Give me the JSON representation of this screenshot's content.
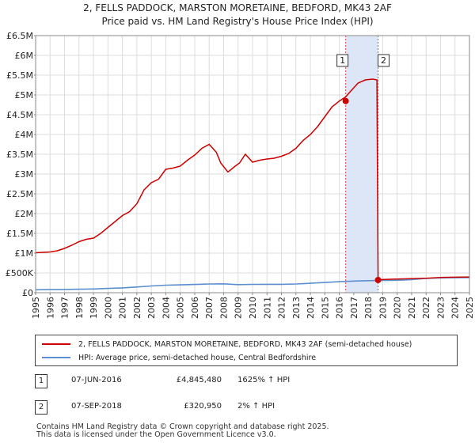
{
  "title_line1": "2, FELLS PADDOCK, MARSTON MORETAINE, BEDFORD, MK43 2AF",
  "title_line2": "Price paid vs. HM Land Registry's House Price Index (HPI)",
  "colors": {
    "property_line": "#cc0000",
    "hpi_line": "#5b8fd0",
    "highlight_band": "#dde6f7",
    "grid": "#dddddd",
    "vline": "#cc0000"
  },
  "chart_data": {
    "type": "line",
    "title": "Price paid vs. HM Land Registry's House Price Index (HPI)",
    "xlabel": "",
    "ylabel": "",
    "xlim": [
      1995,
      2025
    ],
    "ylim": [
      0,
      6500000
    ],
    "y_ticks": [
      {
        "value": 0,
        "label": "£0"
      },
      {
        "value": 500000,
        "label": "£500K"
      },
      {
        "value": 1000000,
        "label": "£1M"
      },
      {
        "value": 1500000,
        "label": "£1.5M"
      },
      {
        "value": 2000000,
        "label": "£2M"
      },
      {
        "value": 2500000,
        "label": "£2.5M"
      },
      {
        "value": 3000000,
        "label": "£3M"
      },
      {
        "value": 3500000,
        "label": "£3.5M"
      },
      {
        "value": 4000000,
        "label": "£4M"
      },
      {
        "value": 4500000,
        "label": "£4.5M"
      },
      {
        "value": 5000000,
        "label": "£5M"
      },
      {
        "value": 5500000,
        "label": "£5.5M"
      },
      {
        "value": 6000000,
        "label": "£6M"
      },
      {
        "value": 6500000,
        "label": "£6.5M"
      }
    ],
    "x_ticks": [
      "1995",
      "1996",
      "1997",
      "1998",
      "1999",
      "2000",
      "2001",
      "2002",
      "2003",
      "2004",
      "2005",
      "2006",
      "2007",
      "2008",
      "2009",
      "2010",
      "2011",
      "2012",
      "2013",
      "2014",
      "2015",
      "2016",
      "2017",
      "2018",
      "2019",
      "2020",
      "2021",
      "2022",
      "2023",
      "2024",
      "2025"
    ],
    "highlight_range": [
      2016.44,
      2018.68
    ],
    "series": [
      {
        "name": "2, FELLS PADDOCK, MARSTON MORETAINE, BEDFORD, MK43 2AF (semi-detached house)",
        "x": [
          1995.0,
          1995.5,
          1996.0,
          1996.5,
          1997.0,
          1997.5,
          1998.0,
          1998.5,
          1999.0,
          1999.5,
          2000.0,
          2000.5,
          2001.0,
          2001.5,
          2002.0,
          2002.5,
          2003.0,
          2003.5,
          2004.0,
          2004.5,
          2005.0,
          2005.5,
          2006.0,
          2006.5,
          2007.0,
          2007.5,
          2007.8,
          2008.3,
          2008.8,
          2009.1,
          2009.5,
          2010.0,
          2010.5,
          2011.0,
          2011.5,
          2012.0,
          2012.5,
          2013.0,
          2013.5,
          2014.0,
          2014.5,
          2015.0,
          2015.5,
          2016.0,
          2016.44,
          2016.8,
          2017.3,
          2017.8,
          2018.3,
          2018.6,
          2018.68,
          2018.8,
          2019.5,
          2020.0,
          2020.5,
          2021.0,
          2021.5,
          2022.0,
          2022.5,
          2023.0,
          2023.5,
          2024.0,
          2024.5,
          2025.0
        ],
        "values": [
          1010000,
          1020000,
          1030000,
          1060000,
          1120000,
          1200000,
          1290000,
          1350000,
          1380000,
          1500000,
          1650000,
          1800000,
          1950000,
          2050000,
          2250000,
          2600000,
          2780000,
          2870000,
          3120000,
          3150000,
          3200000,
          3350000,
          3480000,
          3650000,
          3750000,
          3550000,
          3280000,
          3050000,
          3200000,
          3280000,
          3500000,
          3300000,
          3350000,
          3380000,
          3400000,
          3450000,
          3520000,
          3650000,
          3850000,
          4000000,
          4200000,
          4450000,
          4700000,
          4845480,
          4950000,
          5100000,
          5300000,
          5380000,
          5400000,
          5380000,
          320950,
          330000,
          340000,
          345000,
          350000,
          355000,
          360000,
          365000,
          375000,
          385000,
          390000,
          392000,
          395000,
          398000
        ]
      },
      {
        "name": "HPI: Average price, semi-detached house, Central Bedfordshire",
        "x": [
          1995,
          1996,
          1997,
          1998,
          1999,
          2000,
          2001,
          2002,
          2003,
          2004,
          2005,
          2006,
          2007,
          2008,
          2009,
          2010,
          2011,
          2012,
          2013,
          2014,
          2015,
          2016,
          2017,
          2018,
          2019,
          2020,
          2021,
          2022,
          2023,
          2024,
          2025
        ],
        "values": [
          75000,
          78000,
          82000,
          88000,
          95000,
          108000,
          122000,
          145000,
          170000,
          190000,
          198000,
          207000,
          220000,
          225000,
          205000,
          210000,
          212000,
          212000,
          220000,
          238000,
          258000,
          278000,
          295000,
          305000,
          310000,
          315000,
          330000,
          360000,
          375000,
          378000,
          382000
        ]
      }
    ],
    "sales": [
      {
        "label": "1",
        "x": 2016.44,
        "value": 4845480
      },
      {
        "label": "2",
        "x": 2018.68,
        "value": 320950
      }
    ]
  },
  "legend": {
    "property_label": "2, FELLS PADDOCK, MARSTON MORETAINE, BEDFORD, MK43 2AF (semi-detached house)",
    "hpi_label": "HPI: Average price, semi-detached house, Central Bedfordshire"
  },
  "transactions": [
    {
      "num": "1",
      "date": "07-JUN-2016",
      "price": "£4,845,480",
      "hpi": "1625% ↑ HPI"
    },
    {
      "num": "2",
      "date": "07-SEP-2018",
      "price": "£320,950",
      "hpi": "2% ↑ HPI"
    }
  ],
  "footer_line1": "Contains HM Land Registry data © Crown copyright and database right 2025.",
  "footer_line2": "This data is licensed under the Open Government Licence v3.0."
}
